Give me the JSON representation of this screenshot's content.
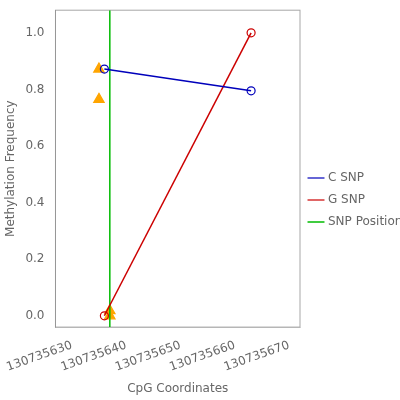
{
  "chart_data": {
    "type": "line",
    "xlabel": "CpG Coordinates",
    "ylabel": "Methylation Frequency",
    "xlim": [
      130735627,
      130735672
    ],
    "ylim": [
      -0.04,
      1.08
    ],
    "xticks": [
      130735630,
      130735640,
      130735650,
      130735660,
      130735670
    ],
    "yticks": [
      {
        "value": 0.0,
        "label": "0.0"
      },
      0.2,
      0.4,
      0.6,
      0.8,
      {
        "value": 1.0,
        "label": "1.0"
      }
    ],
    "grid": false,
    "legend": "right",
    "series": [
      {
        "name": "C SNP",
        "color": "#0000BB",
        "type": "line",
        "marker": "open_circle",
        "line_style": "solid",
        "x": [
          130735636,
          130735663
        ],
        "values": [
          0.872,
          0.795
        ]
      },
      {
        "name": "G SNP",
        "color": "#CC0000",
        "type": "line",
        "marker": "open_circle",
        "line_style": "solid",
        "x": [
          130735636,
          130735663
        ],
        "values": [
          0.0,
          1.0
        ]
      },
      {
        "name": "SNP Position",
        "color": "#00BB00",
        "type": "vline",
        "line_style": "solid",
        "x": 130735637
      },
      {
        "color": "#FFA500",
        "type": "scatter",
        "marker": "triangle",
        "x": [
          130735635,
          130735635,
          130735637,
          130735637
        ],
        "values": [
          0.872,
          0.765,
          0.018,
          0.0
        ]
      }
    ]
  }
}
